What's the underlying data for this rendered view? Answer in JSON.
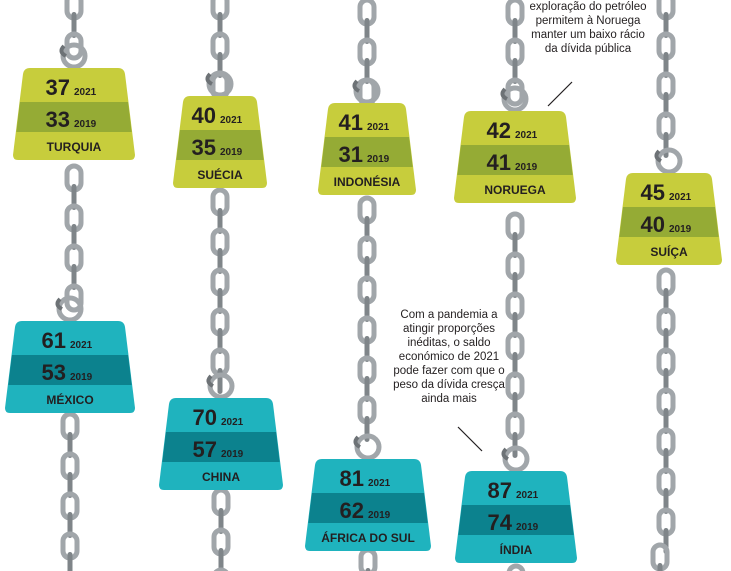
{
  "chart_data": {
    "type": "table",
    "title": "",
    "series": [
      {
        "name": "2021",
        "label": "2021"
      },
      {
        "name": "2019",
        "label": "2019"
      }
    ],
    "items": [
      {
        "country": "TURQUIA",
        "value_2021": 37,
        "value_2019": 33,
        "style": "lime"
      },
      {
        "country": "SUÉCIA",
        "value_2021": 40,
        "value_2019": 35,
        "style": "lime"
      },
      {
        "country": "INDONÉSIA",
        "value_2021": 41,
        "value_2019": 31,
        "style": "lime"
      },
      {
        "country": "NORUEGA",
        "value_2021": 42,
        "value_2019": 41,
        "style": "lime"
      },
      {
        "country": "SUÍÇA",
        "value_2021": 45,
        "value_2019": 40,
        "style": "lime"
      },
      {
        "country": "MÉXICO",
        "value_2021": 61,
        "value_2019": 53,
        "style": "teal"
      },
      {
        "country": "CHINA",
        "value_2021": 70,
        "value_2019": 57,
        "style": "teal"
      },
      {
        "country": "ÁFRICA DO SUL",
        "value_2021": 81,
        "value_2019": 62,
        "style": "teal"
      },
      {
        "country": "ÍNDIA",
        "value_2021": 87,
        "value_2019": 74,
        "style": "teal"
      }
    ],
    "colors": {
      "lime_light": "#c7cd3c",
      "lime_dark": "#95ab35",
      "teal_light": "#1fb3be",
      "teal_dark": "#0c828e",
      "chain": "#a1a6aa",
      "chain_link_dark": "#7f8589",
      "text": "#231f20"
    }
  },
  "annotations": {
    "norway_note": "exploração do petróleo permitem à Noruega manter um baixo rácio da dívida pública",
    "pandemic_note": "Com a pandemia a atingir proporções inéditas, o saldo económico de 2021 pode fazer com que o peso da dívida cresça ainda mais"
  }
}
